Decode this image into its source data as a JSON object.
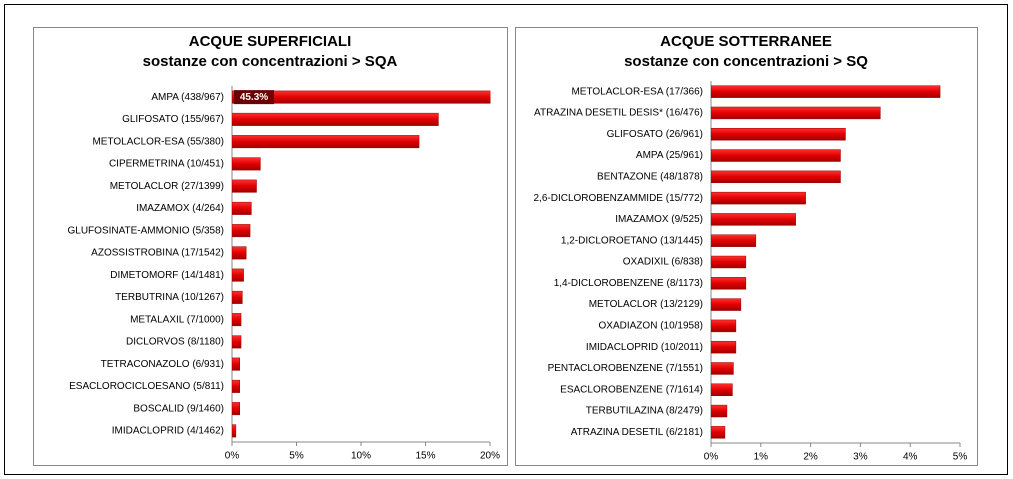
{
  "chart_data": [
    {
      "type": "bar",
      "orientation": "horizontal",
      "title": "ACQUE SUPERFICIALI",
      "subtitle": "sostanze con concentrazioni > SQA",
      "color": "#e00000",
      "categories": [
        "AMPA (438/967)",
        "GLIFOSATO (155/967)",
        "METOLACLOR-ESA (55/380)",
        "CIPERMETRINA (10/451)",
        "METOLACLOR (27/1399)",
        "IMAZAMOX (4/264)",
        "GLUFOSINATE-AMMONIO (5/358)",
        "AZOSSISTROBINA (17/1542)",
        "DIMETOMORF (14/1481)",
        "TERBUTRINA (10/1267)",
        "METALAXIL (7/1000)",
        "DICLORVOS (8/1180)",
        "TETRACONAZOLO (6/931)",
        "ESACLOROCICLOESANO (5/811)",
        "BOSCALID (9/1460)",
        "IMIDACLOPRID (4/1462)"
      ],
      "values": [
        45.3,
        16.0,
        14.5,
        2.2,
        1.9,
        1.5,
        1.4,
        1.1,
        0.9,
        0.8,
        0.7,
        0.7,
        0.6,
        0.6,
        0.6,
        0.3
      ],
      "value_labels": [
        "45.3%",
        null,
        null,
        null,
        null,
        null,
        null,
        null,
        null,
        null,
        null,
        null,
        null,
        null,
        null,
        null
      ],
      "xlim": [
        0,
        20
      ],
      "xticks": [
        {
          "value": 0,
          "label": "0%"
        },
        {
          "value": 5,
          "label": "5%"
        },
        {
          "value": 10,
          "label": "10%"
        },
        {
          "value": 15,
          "label": "15%"
        },
        {
          "value": 20,
          "label": "20%"
        }
      ]
    },
    {
      "type": "bar",
      "orientation": "horizontal",
      "title": "ACQUE SOTTERRANEE",
      "subtitle": "sostanze con concentrazioni > SQ",
      "color": "#e00000",
      "categories": [
        "METOLACLOR-ESA (17/366)",
        "ATRAZINA DESETIL DESIS* (16/476)",
        "GLIFOSATO (26/961)",
        "AMPA (25/961)",
        "BENTAZONE (48/1878)",
        "2,6-DICLOROBENZAMMIDE (15/772)",
        "IMAZAMOX (9/525)",
        "1,2-DICLOROETANO (13/1445)",
        "OXADIXIL (6/838)",
        "1,4-DICLOROBENZENE (8/1173)",
        "METOLACLOR (13/2129)",
        "OXADIAZON (10/1958)",
        "IMIDACLOPRID (10/2011)",
        "PENTACLOROBENZENE (7/1551)",
        "ESACLOROBENZENE (7/1614)",
        "TERBUTILAZINA (8/2479)",
        "ATRAZINA DESETIL (6/2181)"
      ],
      "values": [
        4.6,
        3.4,
        2.7,
        2.6,
        2.6,
        1.9,
        1.7,
        0.9,
        0.7,
        0.7,
        0.6,
        0.5,
        0.5,
        0.45,
        0.43,
        0.32,
        0.28
      ],
      "xlim": [
        0,
        5
      ],
      "xticks": [
        {
          "value": 0,
          "label": "0%"
        },
        {
          "value": 1,
          "label": "1%"
        },
        {
          "value": 2,
          "label": "2%"
        },
        {
          "value": 3,
          "label": "3%"
        },
        {
          "value": 4,
          "label": "4%"
        },
        {
          "value": 5,
          "label": "5%"
        }
      ]
    }
  ]
}
